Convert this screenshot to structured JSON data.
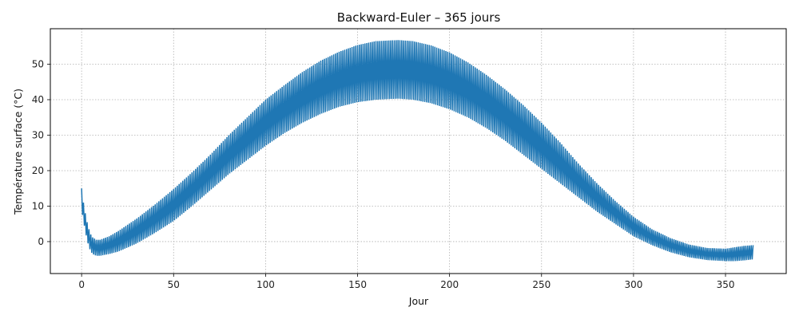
{
  "chart_data": {
    "type": "line",
    "title": "Backward-Euler – 365 jours",
    "xlabel": "Jour",
    "ylabel": "Température surface (°C)",
    "xlim": [
      -17,
      383
    ],
    "ylim": [
      -9,
      60
    ],
    "xticks": [
      0,
      50,
      100,
      150,
      200,
      250,
      300,
      350
    ],
    "yticks": [
      0,
      10,
      20,
      30,
      40,
      50
    ],
    "grid": true,
    "grid_style": "dotted",
    "line_color": "#1f77b4",
    "series": [
      {
        "description_of_shape": "daily oscillation between a lower and upper envelope; one min/max cycle per day",
        "x": [
          0,
          1,
          2,
          3,
          4,
          5,
          6,
          8,
          10,
          15,
          20,
          30,
          40,
          50,
          60,
          70,
          80,
          90,
          100,
          110,
          120,
          130,
          140,
          150,
          160,
          172,
          180,
          190,
          200,
          210,
          220,
          230,
          240,
          250,
          260,
          270,
          280,
          290,
          300,
          310,
          320,
          330,
          340,
          350,
          355,
          360,
          365
        ],
        "lower": [
          9,
          6,
          3,
          0.5,
          -1.5,
          -2.8,
          -3.5,
          -4,
          -4,
          -3.5,
          -2.8,
          -0.5,
          2.5,
          5.8,
          10,
          14.5,
          19,
          23,
          27,
          30.5,
          33.5,
          36,
          38,
          39.3,
          40,
          40.3,
          40,
          39,
          37.3,
          35,
          32,
          28.5,
          24.5,
          20.5,
          16.5,
          12.5,
          8.5,
          5,
          1.5,
          -1,
          -3,
          -4.4,
          -5.2,
          -5.5,
          -5.5,
          -5.3,
          -5
        ],
        "upper": [
          15,
          11,
          8,
          5.5,
          3.5,
          2,
          1.2,
          0.5,
          0.5,
          1.5,
          3,
          6.5,
          10.5,
          14.8,
          19.5,
          24.5,
          30,
          35,
          40,
          44,
          47.8,
          51,
          53.5,
          55.4,
          56.5,
          56.8,
          56.5,
          55.3,
          53.3,
          50.5,
          47,
          43,
          38.5,
          33.5,
          28,
          22,
          16.5,
          11.5,
          7,
          3.5,
          1,
          -0.8,
          -1.8,
          -2,
          -1.6,
          -1.2,
          -1
        ]
      }
    ]
  }
}
